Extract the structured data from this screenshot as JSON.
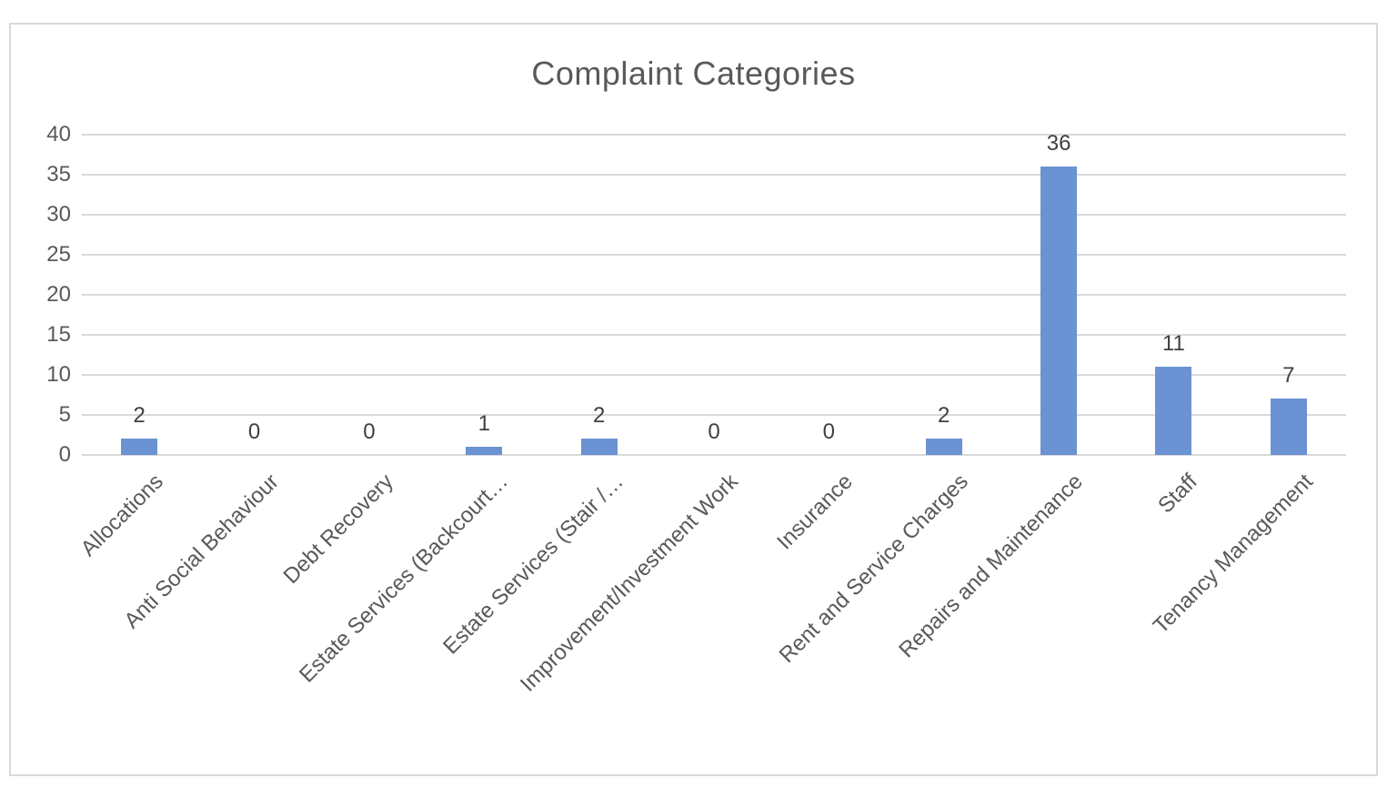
{
  "chart_data": {
    "type": "bar",
    "title": "Complaint Categories",
    "categories": [
      "Allocations",
      "Anti Social Behaviour",
      "Debt Recovery",
      "Estate Services (Backcourt…",
      "Estate Services (Stair /…",
      "Improvement/Investment Work",
      "Insurance",
      "Rent and Service Charges",
      "Repairs and Maintenance",
      "Staff",
      "Tenancy Management"
    ],
    "values": [
      2,
      0,
      0,
      1,
      2,
      0,
      0,
      2,
      36,
      11,
      7
    ],
    "data_labels": [
      "2",
      "0",
      "0",
      "1",
      "2",
      "0",
      "0",
      "2",
      "36",
      "11",
      "7"
    ],
    "xlabel": "",
    "ylabel": "",
    "ylim": [
      0,
      40
    ],
    "yticks": [
      0,
      5,
      10,
      15,
      20,
      25,
      30,
      35,
      40
    ],
    "grid": "horizontal",
    "legend": "none",
    "x_label_rotation_deg": 45,
    "colors": {
      "bar": "#6b92d2",
      "title_text": "#595959",
      "axis_tick_text": "#595959",
      "category_text": "#595959",
      "data_label_text": "#3f3f3f",
      "gridline": "#d9d9d9",
      "frame_border": "#d8d8d8",
      "background": "#ffffff"
    }
  }
}
